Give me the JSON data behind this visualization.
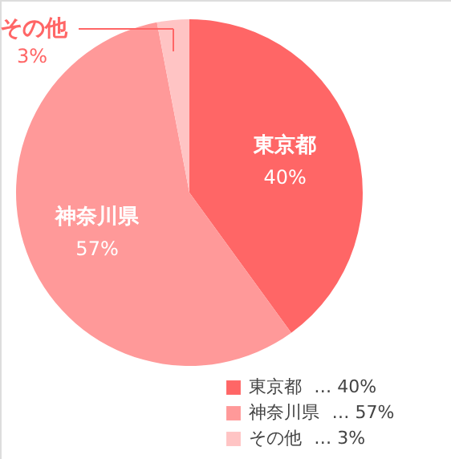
{
  "chart_data": {
    "type": "pie",
    "categories": [
      "東京都",
      "神奈川県",
      "その他"
    ],
    "values": [
      40,
      57,
      3
    ],
    "colors": [
      "#ff6666",
      "#ff9999",
      "#ffc4c4"
    ],
    "value_labels": [
      "40%",
      "57%",
      "3%"
    ],
    "legend": "bottom right",
    "annotations": [
      "… 40%",
      "… 57%",
      "… 3%"
    ]
  }
}
